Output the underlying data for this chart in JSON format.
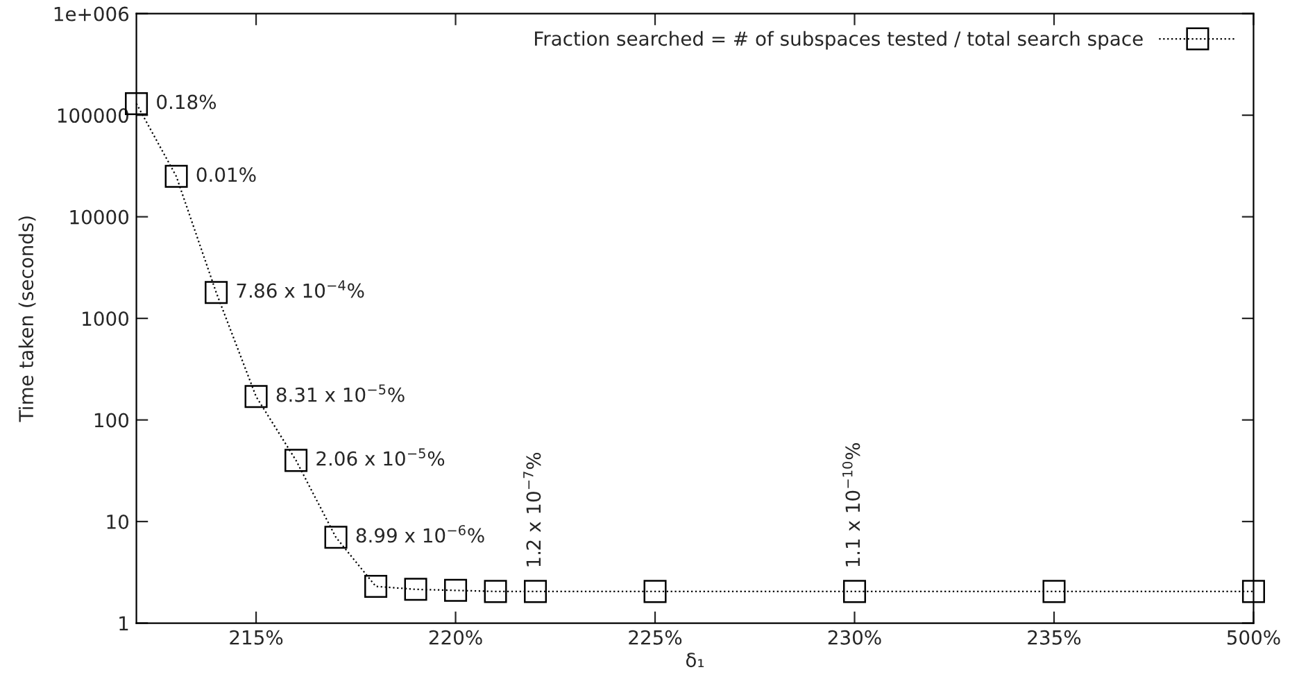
{
  "chart_data": {
    "type": "line",
    "xlabel": "δ₁",
    "ylabel": "Time taken (seconds)",
    "categories": [
      null,
      null,
      null,
      "215%",
      null,
      null,
      null,
      null,
      "220%",
      null,
      null,
      null,
      null,
      "225%",
      null,
      null,
      null,
      null,
      "230%",
      null,
      null,
      null,
      null,
      "235%",
      null,
      null,
      null,
      null,
      "500%"
    ],
    "series": [
      {
        "name": "Fraction searched = # of subspaces tested / total search space",
        "color": "#000000",
        "values": [
          130000,
          25000,
          1800,
          170,
          40,
          7,
          2.3,
          2.15,
          2.1,
          2.05,
          2.05,
          null,
          null,
          2.05,
          null,
          null,
          null,
          null,
          2.05,
          null,
          null,
          null,
          null,
          2.05,
          null,
          null,
          null,
          null,
          2.05
        ]
      }
    ],
    "annotations": [
      "0.18%",
      "0.01%",
      "7.86 x 10$^{−4}$%",
      "8.31 x 10$^{−5}$%",
      "2.06 x 10$^{−5}$%",
      "8.99 x 10$^{−6}$%",
      "1.2 x 10$^{−7}$%",
      "1.1 x 10$^{−10}$%"
    ],
    "log": "y",
    "ylim": [
      1,
      1000000
    ],
    "yticks": [
      1,
      10,
      100,
      1000,
      10000,
      100000,
      {
        "value": 1000000,
        "label": "1e+006"
      }
    ],
    "marker": "square",
    "line_style": "dotted",
    "legend": "top right",
    "grid": false
  }
}
